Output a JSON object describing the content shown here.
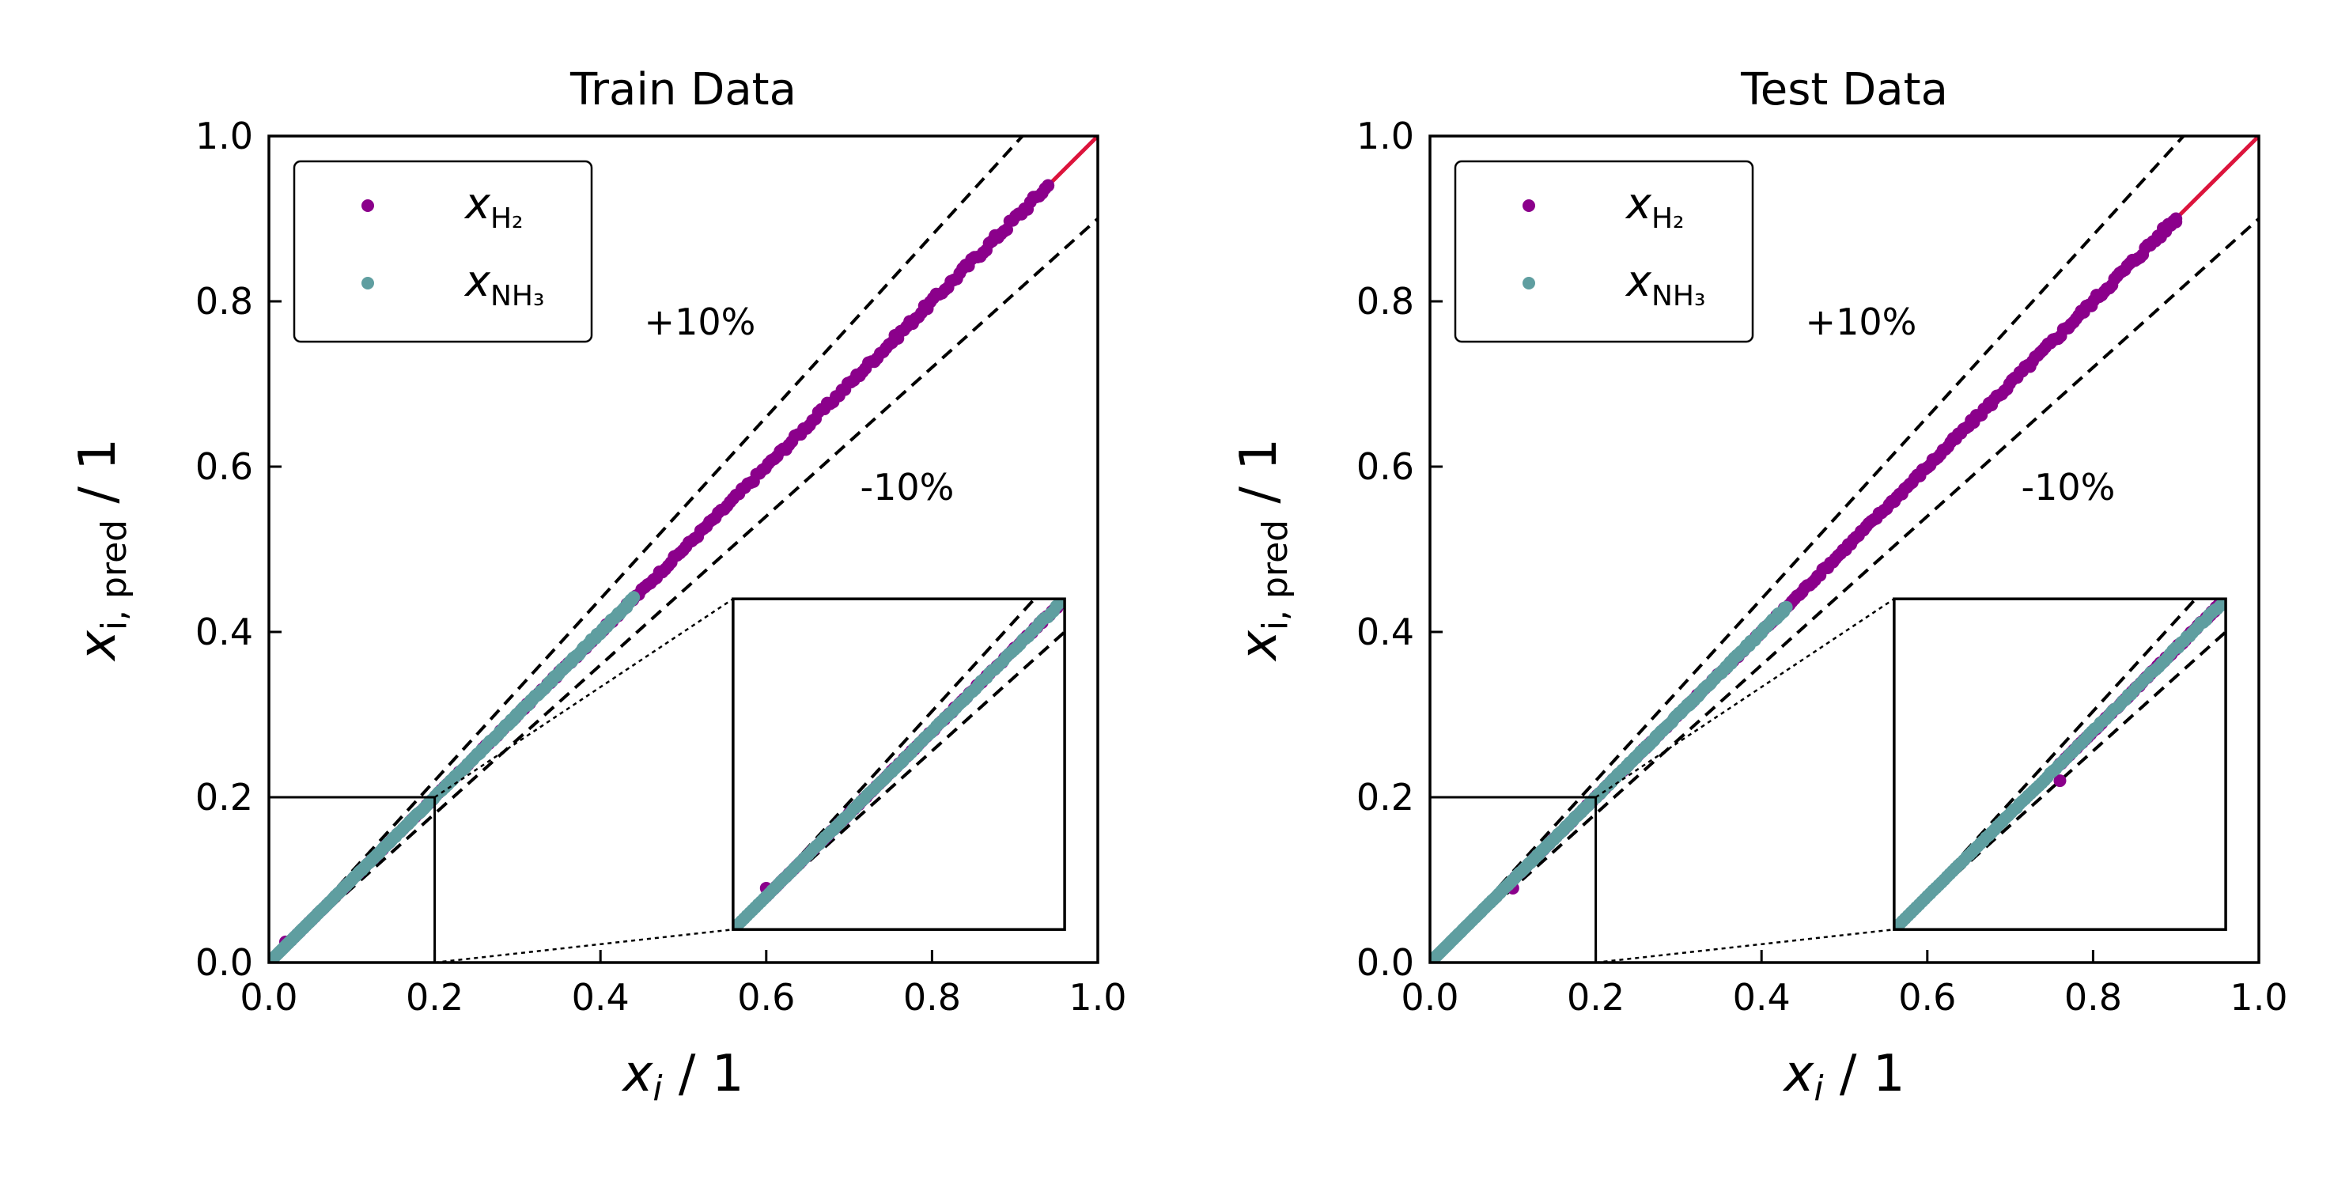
{
  "chart_data": [
    {
      "type": "scatter",
      "title": "Train Data",
      "xlabel": "x_i / 1",
      "ylabel": "x_i,pred / 1",
      "xlim": [
        0.0,
        1.0
      ],
      "ylim": [
        0.0,
        1.0
      ],
      "xticks": [
        "0.0",
        "0.2",
        "0.4",
        "0.6",
        "0.8",
        "1.0"
      ],
      "yticks": [
        "0.0",
        "0.2",
        "0.4",
        "0.6",
        "0.8",
        "1.0"
      ],
      "grid": false,
      "legend_location": "upper-left",
      "series": [
        {
          "name": "x_H2",
          "legend_main": "x",
          "legend_sub": "H₂",
          "color": "#8b008b",
          "x_range": [
            0.02,
            0.94
          ],
          "y_equals_x": true,
          "extra_points": [
            [
              0.02,
              0.025
            ],
            [
              0.94,
              0.94
            ]
          ]
        },
        {
          "name": "x_NH3",
          "legend_main": "x",
          "legend_sub": "NH₃",
          "color": "#5f9ea0",
          "x_range": [
            0.0,
            0.44
          ],
          "y_equals_x": true
        }
      ],
      "reference_lines": [
        {
          "label": "parity",
          "slope": 1.0,
          "color": "#dc143c",
          "style": "solid"
        },
        {
          "label": "+10%",
          "slope": 1.1,
          "color": "#000000",
          "style": "dashed"
        },
        {
          "label": "-10%",
          "slope": 0.9,
          "color": "#000000",
          "style": "dashed"
        }
      ],
      "annotations": [
        {
          "text": "+10%",
          "x": 0.52,
          "y": 0.76
        },
        {
          "text": "-10%",
          "x": 0.77,
          "y": 0.56
        }
      ],
      "inset": {
        "xlim": [
          0.0,
          0.2
        ],
        "ylim": [
          0.0,
          0.2
        ]
      }
    },
    {
      "type": "scatter",
      "title": "Test Data",
      "xlabel": "x_i / 1",
      "ylabel": "x_i,pred / 1",
      "xlim": [
        0.0,
        1.0
      ],
      "ylim": [
        0.0,
        1.0
      ],
      "xticks": [
        "0.0",
        "0.2",
        "0.4",
        "0.6",
        "0.8",
        "1.0"
      ],
      "yticks": [
        "0.0",
        "0.2",
        "0.4",
        "0.6",
        "0.8",
        "1.0"
      ],
      "grid": false,
      "legend_location": "upper-left",
      "series": [
        {
          "name": "x_H2",
          "legend_main": "x",
          "legend_sub": "H₂",
          "color": "#8b008b",
          "x_range": [
            0.1,
            0.9
          ],
          "y_equals_x": true,
          "extra_points": [
            [
              0.1,
              0.09
            ],
            [
              0.9,
              0.9
            ]
          ]
        },
        {
          "name": "x_NH3",
          "legend_main": "x",
          "legend_sub": "NH₃",
          "color": "#5f9ea0",
          "x_range": [
            0.0,
            0.43
          ],
          "y_equals_x": true
        }
      ],
      "reference_lines": [
        {
          "label": "parity",
          "slope": 1.0,
          "color": "#dc143c",
          "style": "solid"
        },
        {
          "label": "+10%",
          "slope": 1.1,
          "color": "#000000",
          "style": "dashed"
        },
        {
          "label": "-10%",
          "slope": 0.9,
          "color": "#000000",
          "style": "dashed"
        }
      ],
      "annotations": [
        {
          "text": "+10%",
          "x": 0.52,
          "y": 0.76
        },
        {
          "text": "-10%",
          "x": 0.77,
          "y": 0.56
        }
      ],
      "inset": {
        "xlim": [
          0.0,
          0.2
        ],
        "ylim": [
          0.0,
          0.2
        ]
      }
    }
  ]
}
